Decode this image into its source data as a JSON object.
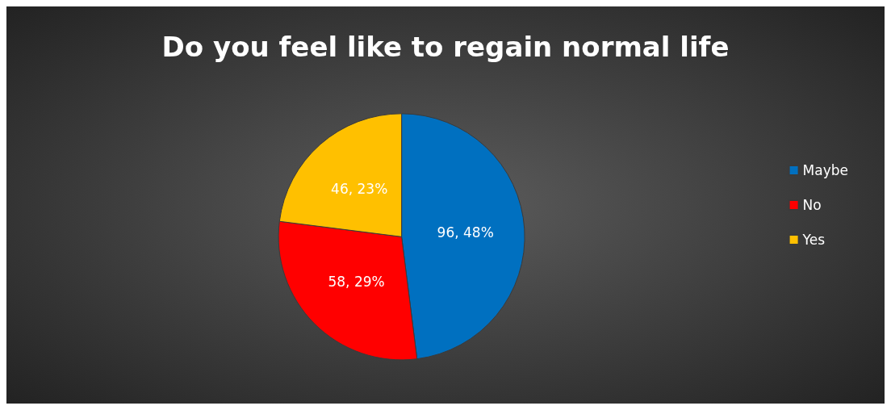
{
  "chart_data": {
    "type": "pie",
    "title": "Do you feel like to regain normal life",
    "categories": [
      "Maybe",
      "No",
      "Yes"
    ],
    "values": [
      96,
      58,
      46
    ],
    "colors": [
      "#0070c0",
      "#ff0000",
      "#ffc000"
    ],
    "value_labels": [
      "96, 48%",
      "58, 29%",
      "46, 23%"
    ],
    "legend": "right"
  }
}
